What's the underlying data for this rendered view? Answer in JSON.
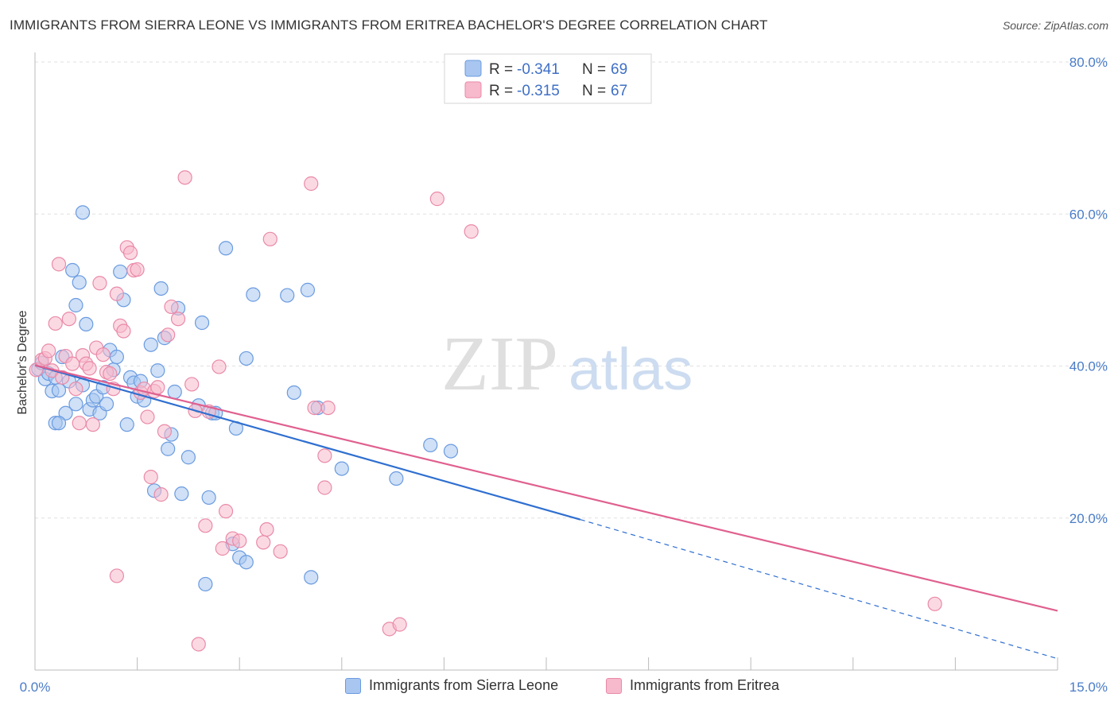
{
  "title": "IMMIGRANTS FROM SIERRA LEONE VS IMMIGRANTS FROM ERITREA BACHELOR'S DEGREE CORRELATION CHART",
  "source": "Source: ZipAtlas.com",
  "watermark": {
    "zip": "ZIP",
    "atlas": "atlas"
  },
  "colors": {
    "blue_fill": "#a8c6f0",
    "blue_stroke": "#6a9be0",
    "blue_line": "#2f6fd0",
    "pink_fill": "#f7b9cc",
    "pink_stroke": "#ea8aa8",
    "pink_line": "#e0608f",
    "grid": "#e0e0e0",
    "tick_text": "#4a7cc7"
  },
  "legend": {
    "rows": [
      {
        "r_label": "R =",
        "r_value": "-0.341",
        "n_label": "N =",
        "n_value": "69"
      },
      {
        "r_label": "R =",
        "r_value": "-0.315",
        "n_label": "N =",
        "n_value": "67"
      }
    ]
  },
  "bottom_legend": {
    "items": [
      "Immigrants from Sierra Leone",
      "Immigrants from Eritrea"
    ]
  },
  "chart_data": {
    "type": "scatter",
    "title": "IMMIGRANTS FROM SIERRA LEONE VS IMMIGRANTS FROM ERITREA BACHELOR'S DEGREE CORRELATION CHART",
    "xlabel": "",
    "ylabel": "Bachelor's Degree",
    "xlim": [
      0,
      15
    ],
    "ylim": [
      0,
      80
    ],
    "x_tick_labels": [
      "0.0%",
      "15.0%"
    ],
    "y_ticks": [
      20,
      40,
      60,
      80
    ],
    "y_tick_labels": [
      "20.0%",
      "40.0%",
      "60.0%",
      "80.0%"
    ],
    "grid": true,
    "legend_placement": "top-center",
    "series": [
      {
        "name": "Immigrants from Sierra Leone",
        "color": "#a8c6f0",
        "trend": {
          "x": [
            0,
            8.0
          ],
          "y": [
            40.1,
            19.8
          ],
          "dashed_extension_to": [
            15.0,
            1.5
          ]
        },
        "points": [
          [
            0.05,
            39.6
          ],
          [
            0.1,
            40.4
          ],
          [
            0.15,
            38.3
          ],
          [
            0.2,
            39.0
          ],
          [
            0.25,
            36.7
          ],
          [
            0.3,
            38.5
          ],
          [
            0.35,
            36.8
          ],
          [
            0.4,
            41.2
          ],
          [
            0.45,
            33.8
          ],
          [
            0.5,
            38.0
          ],
          [
            0.55,
            52.6
          ],
          [
            0.6,
            48.0
          ],
          [
            0.65,
            51.0
          ],
          [
            0.7,
            60.2
          ],
          [
            0.75,
            45.5
          ],
          [
            0.8,
            34.3
          ],
          [
            0.85,
            35.5
          ],
          [
            0.9,
            36.0
          ],
          [
            0.95,
            33.8
          ],
          [
            1.0,
            37.2
          ],
          [
            1.05,
            35.0
          ],
          [
            1.1,
            42.1
          ],
          [
            1.15,
            39.5
          ],
          [
            1.2,
            41.2
          ],
          [
            1.25,
            52.4
          ],
          [
            1.3,
            48.7
          ],
          [
            1.35,
            32.3
          ],
          [
            1.4,
            38.5
          ],
          [
            1.45,
            37.8
          ],
          [
            1.5,
            36.0
          ],
          [
            1.55,
            38.0
          ],
          [
            1.6,
            35.5
          ],
          [
            1.7,
            42.8
          ],
          [
            1.75,
            23.6
          ],
          [
            1.8,
            39.4
          ],
          [
            1.85,
            50.2
          ],
          [
            1.9,
            43.7
          ],
          [
            1.95,
            29.1
          ],
          [
            2.0,
            31.0
          ],
          [
            2.05,
            36.6
          ],
          [
            2.1,
            47.6
          ],
          [
            2.15,
            23.2
          ],
          [
            2.25,
            28.0
          ],
          [
            2.4,
            34.8
          ],
          [
            2.45,
            45.7
          ],
          [
            2.5,
            11.3
          ],
          [
            2.55,
            22.7
          ],
          [
            2.6,
            33.8
          ],
          [
            2.65,
            33.8
          ],
          [
            2.8,
            55.5
          ],
          [
            2.9,
            16.6
          ],
          [
            2.95,
            31.8
          ],
          [
            3.0,
            14.8
          ],
          [
            3.1,
            14.2
          ],
          [
            3.2,
            49.4
          ],
          [
            3.1,
            41.0
          ],
          [
            3.7,
            49.3
          ],
          [
            3.8,
            36.5
          ],
          [
            4.0,
            50.0
          ],
          [
            4.05,
            12.2
          ],
          [
            4.15,
            34.5
          ],
          [
            4.5,
            26.5
          ],
          [
            5.3,
            25.2
          ],
          [
            5.8,
            29.6
          ],
          [
            6.1,
            28.8
          ],
          [
            0.3,
            32.5
          ],
          [
            0.35,
            32.5
          ],
          [
            0.6,
            35.0
          ],
          [
            0.7,
            37.5
          ]
        ]
      },
      {
        "name": "Immigrants from Eritrea",
        "color": "#f7b9cc",
        "trend": {
          "x": [
            0,
            15.0
          ],
          "y": [
            40.1,
            7.8
          ]
        },
        "points": [
          [
            0.02,
            39.5
          ],
          [
            0.1,
            40.8
          ],
          [
            0.15,
            41.0
          ],
          [
            0.2,
            42.0
          ],
          [
            0.25,
            39.4
          ],
          [
            0.3,
            45.6
          ],
          [
            0.35,
            53.4
          ],
          [
            0.4,
            38.5
          ],
          [
            0.45,
            41.3
          ],
          [
            0.5,
            46.2
          ],
          [
            0.55,
            40.3
          ],
          [
            0.6,
            37.0
          ],
          [
            0.65,
            32.5
          ],
          [
            0.7,
            41.4
          ],
          [
            0.75,
            40.3
          ],
          [
            0.8,
            39.7
          ],
          [
            0.85,
            32.3
          ],
          [
            0.9,
            42.4
          ],
          [
            0.95,
            50.9
          ],
          [
            1.0,
            41.5
          ],
          [
            1.05,
            39.2
          ],
          [
            1.1,
            39.0
          ],
          [
            1.15,
            37.0
          ],
          [
            1.2,
            49.5
          ],
          [
            1.25,
            45.3
          ],
          [
            1.3,
            44.6
          ],
          [
            1.35,
            55.6
          ],
          [
            1.4,
            54.9
          ],
          [
            1.45,
            52.6
          ],
          [
            1.5,
            52.7
          ],
          [
            1.55,
            36.5
          ],
          [
            1.6,
            37.0
          ],
          [
            1.65,
            33.3
          ],
          [
            1.7,
            25.4
          ],
          [
            1.75,
            36.7
          ],
          [
            1.8,
            37.2
          ],
          [
            1.85,
            23.1
          ],
          [
            1.9,
            31.4
          ],
          [
            1.95,
            44.1
          ],
          [
            2.0,
            47.8
          ],
          [
            2.1,
            46.2
          ],
          [
            2.2,
            64.8
          ],
          [
            2.3,
            37.6
          ],
          [
            2.35,
            34.1
          ],
          [
            2.4,
            3.4
          ],
          [
            2.5,
            19.0
          ],
          [
            2.55,
            34.0
          ],
          [
            2.7,
            39.9
          ],
          [
            2.75,
            16.0
          ],
          [
            2.8,
            20.9
          ],
          [
            2.9,
            17.3
          ],
          [
            3.0,
            17.0
          ],
          [
            3.35,
            16.8
          ],
          [
            3.4,
            18.5
          ],
          [
            3.45,
            56.7
          ],
          [
            3.6,
            15.6
          ],
          [
            4.05,
            64.0
          ],
          [
            4.1,
            34.5
          ],
          [
            4.3,
            34.5
          ],
          [
            4.25,
            28.2
          ],
          [
            4.25,
            24.0
          ],
          [
            5.2,
            5.4
          ],
          [
            5.35,
            6.0
          ],
          [
            5.9,
            62.0
          ],
          [
            6.4,
            57.7
          ],
          [
            13.2,
            8.7
          ],
          [
            1.2,
            12.4
          ]
        ]
      }
    ]
  }
}
